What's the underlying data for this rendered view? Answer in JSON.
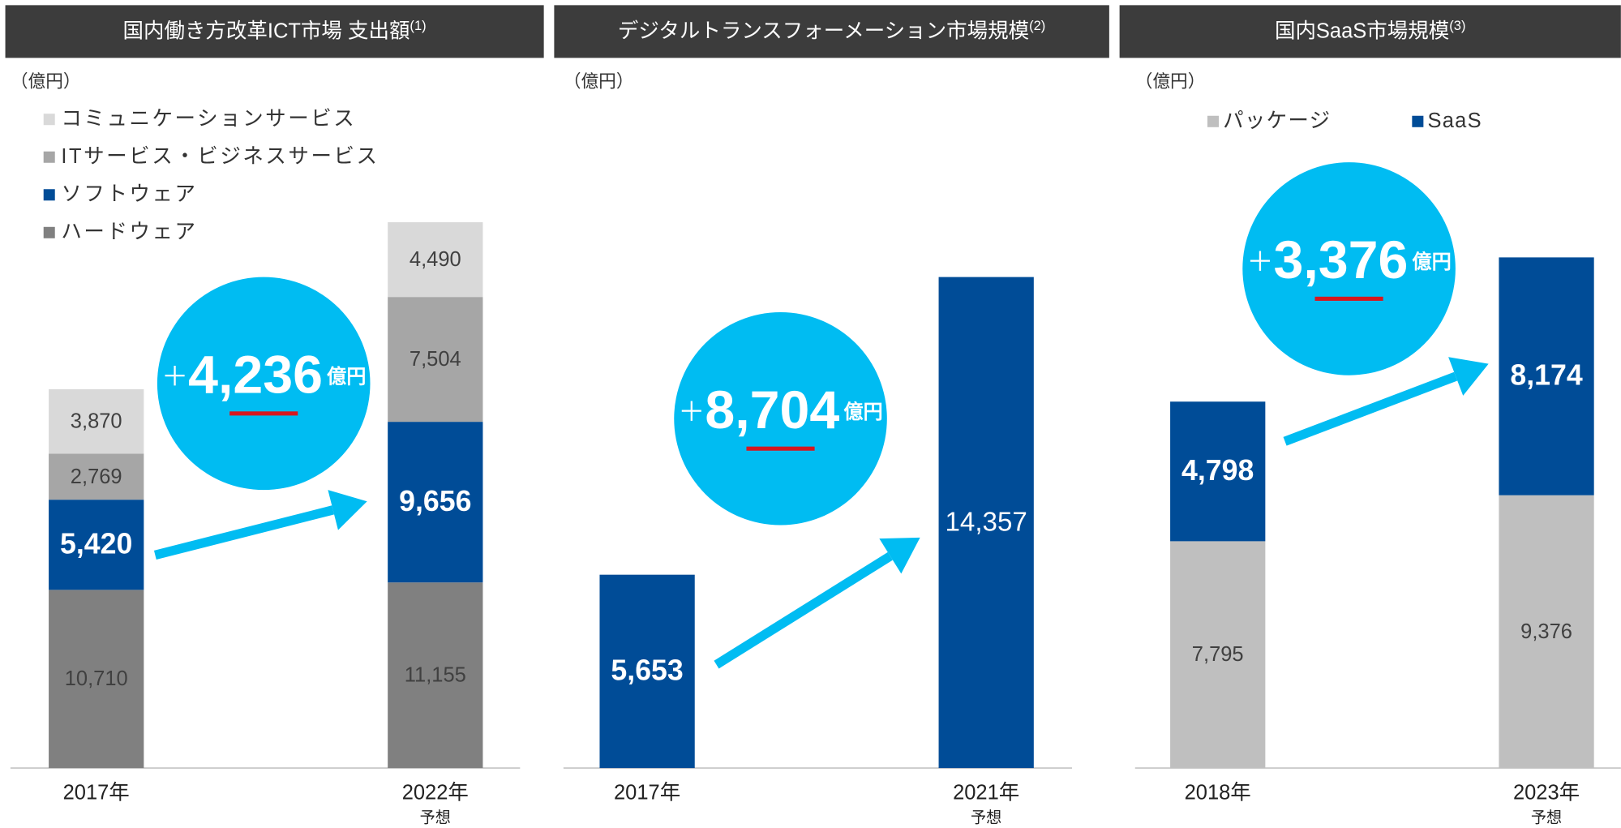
{
  "chart_data": [
    {
      "type": "bar",
      "stacked": true,
      "title": "国内働き方改革ICT市場 支出額",
      "title_note": "(1)",
      "unit_label": "（億円）",
      "categories": [
        "2017年",
        "2022年"
      ],
      "category_notes": [
        null,
        "予想"
      ],
      "series": [
        {
          "name": "ハードウェア",
          "color": "#808080",
          "values": [
            10710,
            11155
          ],
          "value_labels": [
            "10,710",
            "11,155"
          ]
        },
        {
          "name": "ソフトウェア",
          "color": "#004c97",
          "values": [
            5420,
            9656
          ],
          "value_labels": [
            "5,420",
            "9,656"
          ]
        },
        {
          "name": "ITサービス・ビジネスサービス",
          "color": "#a6a6a6",
          "values": [
            2769,
            7504
          ],
          "value_labels": [
            "2,769",
            "7,504"
          ]
        },
        {
          "name": "コミュニケーションサービス",
          "color": "#d9d9d9",
          "values": [
            3870,
            4490
          ],
          "value_labels": [
            "3,870",
            "4,490"
          ]
        }
      ],
      "annotation": {
        "prefix": "＋",
        "value": "4,236",
        "unit": "億円"
      },
      "annotation_color": "#00bcf2"
    },
    {
      "type": "bar",
      "stacked": true,
      "title": "デジタルトランスフォーメーション市場規模",
      "title_note": "(2)",
      "unit_label": "（億円）",
      "categories": [
        "2017年",
        "2021年"
      ],
      "category_notes": [
        null,
        "予想"
      ],
      "series": [
        {
          "color": "#004c97",
          "values": [
            5653,
            14357
          ],
          "value_labels": [
            "5,653",
            "14,357"
          ]
        }
      ],
      "annotation": {
        "prefix": "＋",
        "value": "8,704",
        "unit": "億円"
      },
      "annotation_color": "#00bcf2"
    },
    {
      "type": "bar",
      "stacked": true,
      "title": "国内SaaS市場規模",
      "title_note": "(3)",
      "unit_label": "（億円）",
      "categories": [
        "2018年",
        "2023年"
      ],
      "category_notes": [
        null,
        "予想"
      ],
      "series": [
        {
          "name": "パッケージ",
          "color": "#bfbfbf",
          "values": [
            7795,
            9376
          ],
          "value_labels": [
            "7,795",
            "9,376"
          ]
        },
        {
          "name": "SaaS",
          "color": "#004c97",
          "values": [
            4798,
            8174
          ],
          "value_labels": [
            "4,798",
            "8,174"
          ]
        }
      ],
      "annotation": {
        "prefix": "＋",
        "value": "3,376",
        "unit": "億円"
      },
      "annotation_color": "#00bcf2"
    }
  ]
}
